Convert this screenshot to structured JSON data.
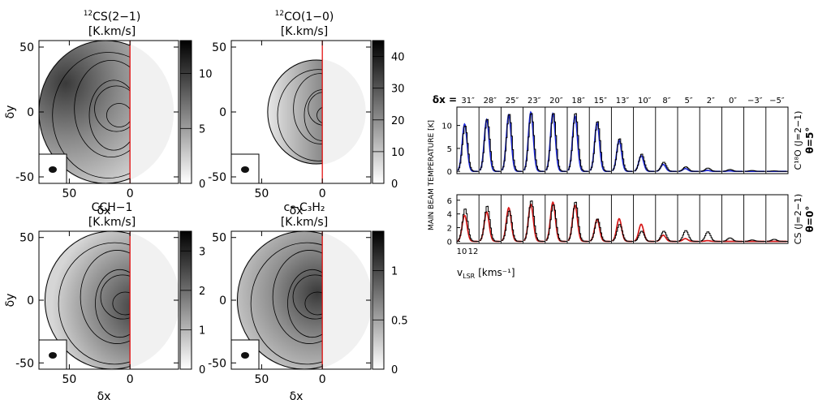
{
  "chart_data": [
    {
      "type": "heatmap",
      "id": "cs",
      "title": "CS(2−1)",
      "title_sup": "12",
      "unit": "[K.km/s]",
      "xlabel": "δx",
      "ylabel": "δy",
      "xlim": [
        75,
        -40
      ],
      "ylim": [
        -55,
        55
      ],
      "xticks": [
        50,
        0
      ],
      "yticks": [
        50,
        0,
        -50
      ],
      "colorbar": {
        "range": [
          0,
          13
        ],
        "ticks": [
          0,
          5,
          10
        ]
      },
      "center_x": 20,
      "center_y": 0,
      "radius": 55,
      "levels": 5,
      "beam_label": true
    },
    {
      "type": "heatmap",
      "id": "co",
      "title": "CO(1−0)",
      "title_sup": "12",
      "unit": "[K.km/s]",
      "xlabel": "δx",
      "ylabel": "δy",
      "xlim": [
        75,
        -40
      ],
      "ylim": [
        -55,
        55
      ],
      "xticks": [
        50,
        0
      ],
      "yticks": [
        50,
        0,
        -50
      ],
      "colorbar": {
        "range": [
          0,
          45
        ],
        "ticks": [
          0,
          10,
          20,
          30,
          40
        ]
      },
      "center_x": 5,
      "center_y": 0,
      "radius": 40,
      "levels": 5
    },
    {
      "type": "heatmap",
      "id": "cch",
      "title": "CCH−1",
      "unit": "[K.km/s]",
      "xlabel": "δx",
      "ylabel": "δy",
      "xlim": [
        75,
        -40
      ],
      "ylim": [
        -55,
        55
      ],
      "xticks": [
        50,
        0
      ],
      "yticks": [
        50,
        0,
        -50
      ],
      "colorbar": {
        "range": [
          0,
          3.5
        ],
        "ticks": [
          0,
          1,
          2,
          3
        ]
      },
      "center_x": 15,
      "center_y": 0,
      "radius": 55,
      "levels": 5
    },
    {
      "type": "heatmap",
      "id": "c3h2",
      "title": "c−C₃H₂",
      "unit": "[K.km/s]",
      "xlabel": "δx",
      "ylabel": "δy",
      "xlim": [
        75,
        -40
      ],
      "ylim": [
        -55,
        55
      ],
      "xticks": [
        50,
        0
      ],
      "yticks": [
        50,
        0,
        -50
      ],
      "colorbar": {
        "range": [
          0,
          1.4
        ],
        "ticks": [
          0,
          0.5,
          1
        ]
      },
      "center_x": 15,
      "center_y": 0,
      "radius": 55,
      "levels": 5
    },
    {
      "type": "line",
      "id": "spectra",
      "offset_prefix": "δx =",
      "offsets": [
        "31″",
        "28″",
        "25″",
        "23″",
        "20″",
        "18″",
        "15″",
        "13″",
        "10″",
        "8″",
        "5″",
        "2″",
        "0″",
        "−3″",
        "−5″"
      ],
      "ylabel": "MAIN BEAM TEMPERATURE [K]",
      "xlabel": "v",
      "xlabel_sub": "LSR",
      "xlabel_unit": "[kms⁻¹]",
      "x_tick_labels": [
        "10",
        "12"
      ],
      "top": {
        "molecule": "C¹⁸O (J=2−1)",
        "model_label": "θ=5°",
        "model_color": "#1f2ad6",
        "ylim": [
          -0.5,
          14
        ],
        "yticks": [
          0,
          5,
          10
        ],
        "obs_peaks": [
          10.0,
          11.5,
          12.6,
          12.8,
          12.8,
          12.8,
          11.0,
          7.2,
          3.8,
          2.0,
          1.0,
          0.7,
          0.4,
          0.2,
          0.1
        ],
        "model_peaks": [
          10.3,
          11.3,
          12.3,
          12.9,
          12.6,
          12.1,
          10.6,
          6.8,
          3.4,
          1.5,
          0.6,
          0.2,
          0.1,
          0.0,
          0.0
        ]
      },
      "bottom": {
        "molecule": "CS (J=2−1)",
        "model_label": "θ=0°",
        "model_color": "#d61a1a",
        "ylim": [
          -0.3,
          6.8
        ],
        "yticks": [
          0,
          2,
          4,
          6
        ],
        "obs_peaks": [
          4.8,
          5.2,
          4.5,
          6.0,
          5.4,
          5.8,
          3.3,
          2.5,
          1.5,
          1.5,
          1.6,
          1.4,
          0.5,
          0.2,
          0.3
        ],
        "model_peaks": [
          3.8,
          4.3,
          4.9,
          5.4,
          5.7,
          5.3,
          3.2,
          3.3,
          2.5,
          0.9,
          0.4,
          0.1,
          0.0,
          0.0,
          0.0
        ]
      }
    }
  ]
}
